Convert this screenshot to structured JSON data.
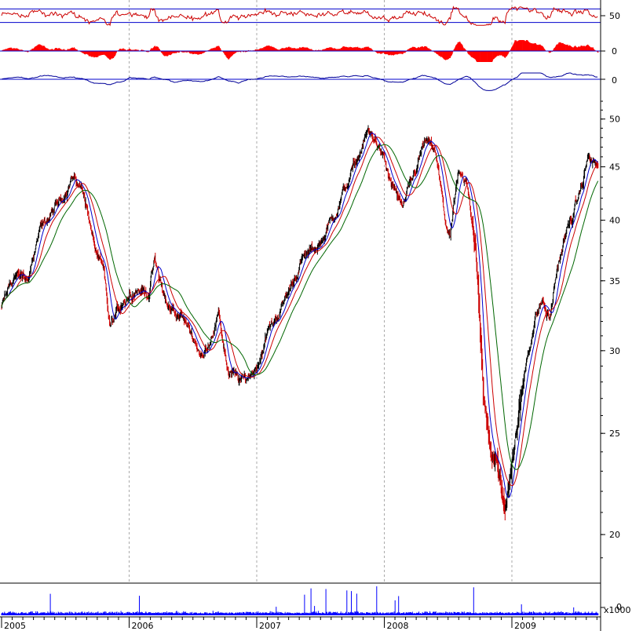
{
  "chart_data": {
    "type": "candlestick",
    "x_axis": {
      "tick_labels": [
        "2005",
        "2006",
        "2007",
        "2008",
        "2009"
      ],
      "range": [
        2005.0,
        2009.7
      ]
    },
    "price": {
      "scale": "log",
      "ylim": [
        18,
        53
      ],
      "tick_labels": [
        "50",
        "45",
        "40",
        "35",
        "30",
        "25",
        "20"
      ],
      "tick_values": [
        50,
        45,
        40,
        35,
        30,
        25,
        20
      ],
      "key_points": [
        {
          "t": 2005.0,
          "v": 33.0
        },
        {
          "t": 2005.1,
          "v": 35.5
        },
        {
          "t": 2005.2,
          "v": 35.0
        },
        {
          "t": 2005.3,
          "v": 39.0
        },
        {
          "t": 2005.45,
          "v": 41.5
        },
        {
          "t": 2005.55,
          "v": 44.0
        },
        {
          "t": 2005.65,
          "v": 42.5
        },
        {
          "t": 2005.72,
          "v": 38.0
        },
        {
          "t": 2005.8,
          "v": 35.5
        },
        {
          "t": 2005.85,
          "v": 31.5
        },
        {
          "t": 2005.95,
          "v": 33.5
        },
        {
          "t": 2006.05,
          "v": 34.5
        },
        {
          "t": 2006.15,
          "v": 34.0
        },
        {
          "t": 2006.2,
          "v": 36.5
        },
        {
          "t": 2006.3,
          "v": 33.0
        },
        {
          "t": 2006.4,
          "v": 32.5
        },
        {
          "t": 2006.5,
          "v": 31.0
        },
        {
          "t": 2006.58,
          "v": 29.5
        },
        {
          "t": 2006.7,
          "v": 32.5
        },
        {
          "t": 2006.78,
          "v": 28.5
        },
        {
          "t": 2006.9,
          "v": 28.0
        },
        {
          "t": 2007.0,
          "v": 29.0
        },
        {
          "t": 2007.1,
          "v": 31.5
        },
        {
          "t": 2007.2,
          "v": 33.0
        },
        {
          "t": 2007.35,
          "v": 36.5
        },
        {
          "t": 2007.5,
          "v": 38.0
        },
        {
          "t": 2007.65,
          "v": 41.5
        },
        {
          "t": 2007.8,
          "v": 46.0
        },
        {
          "t": 2007.87,
          "v": 48.5
        },
        {
          "t": 2007.95,
          "v": 47.5
        },
        {
          "t": 2008.05,
          "v": 43.5
        },
        {
          "t": 2008.15,
          "v": 41.0
        },
        {
          "t": 2008.22,
          "v": 43.5
        },
        {
          "t": 2008.32,
          "v": 47.5
        },
        {
          "t": 2008.4,
          "v": 46.5
        },
        {
          "t": 2008.48,
          "v": 40.0
        },
        {
          "t": 2008.52,
          "v": 38.5
        },
        {
          "t": 2008.58,
          "v": 44.0
        },
        {
          "t": 2008.65,
          "v": 43.0
        },
        {
          "t": 2008.72,
          "v": 38.0
        },
        {
          "t": 2008.78,
          "v": 27.0
        },
        {
          "t": 2008.84,
          "v": 24.0
        },
        {
          "t": 2008.9,
          "v": 23.0
        },
        {
          "t": 2008.95,
          "v": 21.0
        },
        {
          "t": 2009.0,
          "v": 23.5
        },
        {
          "t": 2009.06,
          "v": 26.0
        },
        {
          "t": 2009.12,
          "v": 29.5
        },
        {
          "t": 2009.18,
          "v": 32.0
        },
        {
          "t": 2009.24,
          "v": 33.5
        },
        {
          "t": 2009.3,
          "v": 32.0
        },
        {
          "t": 2009.36,
          "v": 36.0
        },
        {
          "t": 2009.42,
          "v": 38.5
        },
        {
          "t": 2009.5,
          "v": 41.0
        },
        {
          "t": 2009.56,
          "v": 43.5
        },
        {
          "t": 2009.6,
          "v": 46.0
        },
        {
          "t": 2009.68,
          "v": 45.0
        }
      ]
    },
    "moving_averages": [
      {
        "color": "#0000cc",
        "period_days": 15
      },
      {
        "color": "#cc0000",
        "period_days": 30
      },
      {
        "color": "#006600",
        "period_days": 55
      }
    ],
    "indicator_panels": [
      {
        "type": "line",
        "color": "#cc0000",
        "tick_labels": [
          "50"
        ],
        "reference_lines": [
          62,
          38
        ],
        "ylim": [
          25,
          75
        ]
      },
      {
        "type": "histogram",
        "color": "#ff0000",
        "tick_labels": [
          "0"
        ],
        "zero_line": true
      },
      {
        "type": "line",
        "color": "#000099",
        "tick_labels": [
          "0"
        ],
        "zero_line": true
      }
    ],
    "volume": {
      "color": "#0000ff",
      "tick_labels": [
        "0"
      ],
      "unit_label": "x1000"
    },
    "colors": {
      "up_bar": "#000000",
      "down_bar": "#cc0000",
      "panel_line": "#0000cc",
      "grid": "#aaaaaa"
    },
    "grid": {
      "vertical_dashed": true
    }
  }
}
